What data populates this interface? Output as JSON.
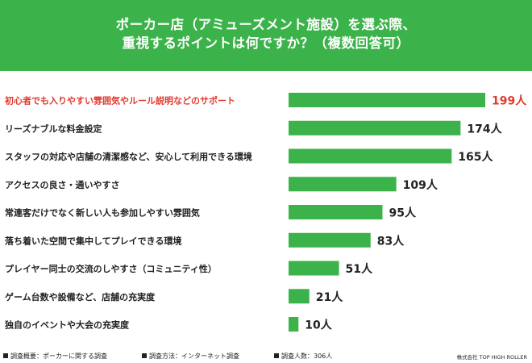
{
  "header": {
    "title_line1": "ポーカー店（アミューズメント施設）を選ぶ際、",
    "title_line2": "重視するポイントは何ですか？（複数回答可）"
  },
  "colors": {
    "accent": "#3cb34a",
    "highlight": "#e03a2f",
    "text": "#222222"
  },
  "chart_data": {
    "type": "bar",
    "orientation": "horizontal",
    "value_suffix": "人",
    "highlight_index": 0,
    "categories": [
      "初心者でも入りやすい雰囲気やルール説明などのサポート",
      "リーズナブルな料金設定",
      "スタッフの対応や店舗の清潔感など、安心して利用できる環境",
      "アクセスの良さ・通いやすさ",
      "常連客だけでなく新しい人も参加しやすい雰囲気",
      "落ち着いた空間で集中してプレイできる環境",
      "プレイヤー同士の交流のしやすさ（コミュニティ性）",
      "ゲーム台数や設備など、店舗の充実度",
      "独自のイベントや大会の充実度"
    ],
    "values": [
      199,
      174,
      165,
      109,
      95,
      83,
      51,
      21,
      10
    ],
    "value_labels": [
      "199人",
      "174人",
      "165人",
      "109人",
      "95人",
      "83人",
      "51人",
      "21人",
      "10人"
    ]
  },
  "footer": {
    "item1": "調査概要：ポーカーに関する調査",
    "item2": "調査方法：インターネット調査",
    "item3": "調査人数：306人",
    "credit": "株式会社 TOP HIGH ROLLER"
  }
}
